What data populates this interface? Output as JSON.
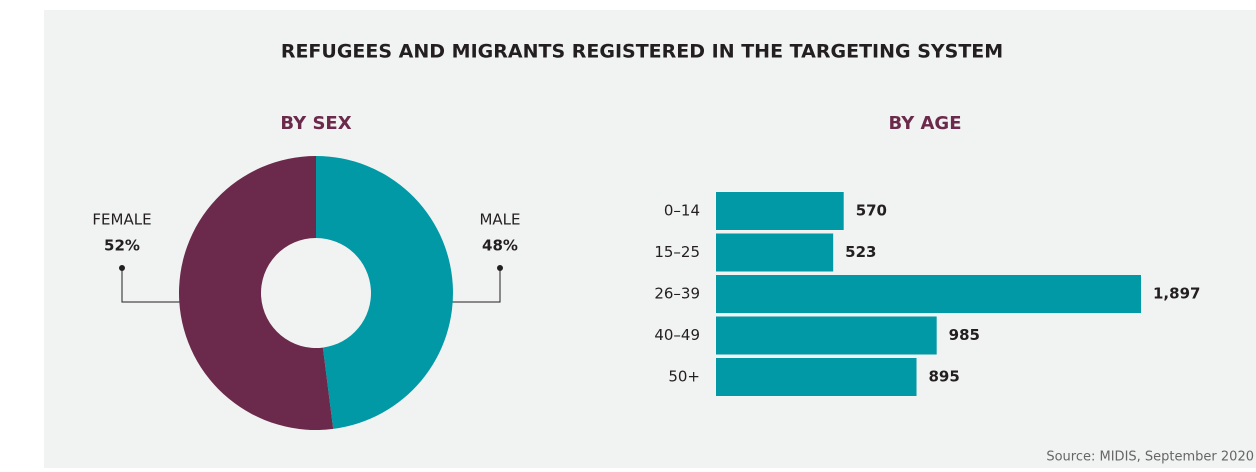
{
  "title": "REFUGEES AND MIGRANTS REGISTERED IN THE TARGETING SYSTEM",
  "source": "Source: MIDIS, September 2020",
  "chart_data": [
    {
      "type": "donut",
      "title": "BY SEX",
      "categories": [
        "FEMALE",
        "MALE"
      ],
      "values": [
        52,
        48
      ],
      "value_labels": [
        "52%",
        "48%"
      ],
      "colors": [
        "#6b2a4b",
        "#0099a5"
      ]
    },
    {
      "type": "bar",
      "orientation": "horizontal",
      "title": "BY AGE",
      "categories": [
        "0–14",
        "15–25",
        "26–39",
        "40–49",
        "50+"
      ],
      "values": [
        570,
        523,
        1897,
        985,
        895
      ],
      "value_labels": [
        "570",
        "523",
        "1,897",
        "985",
        "895"
      ],
      "color": "#0099a5"
    }
  ]
}
